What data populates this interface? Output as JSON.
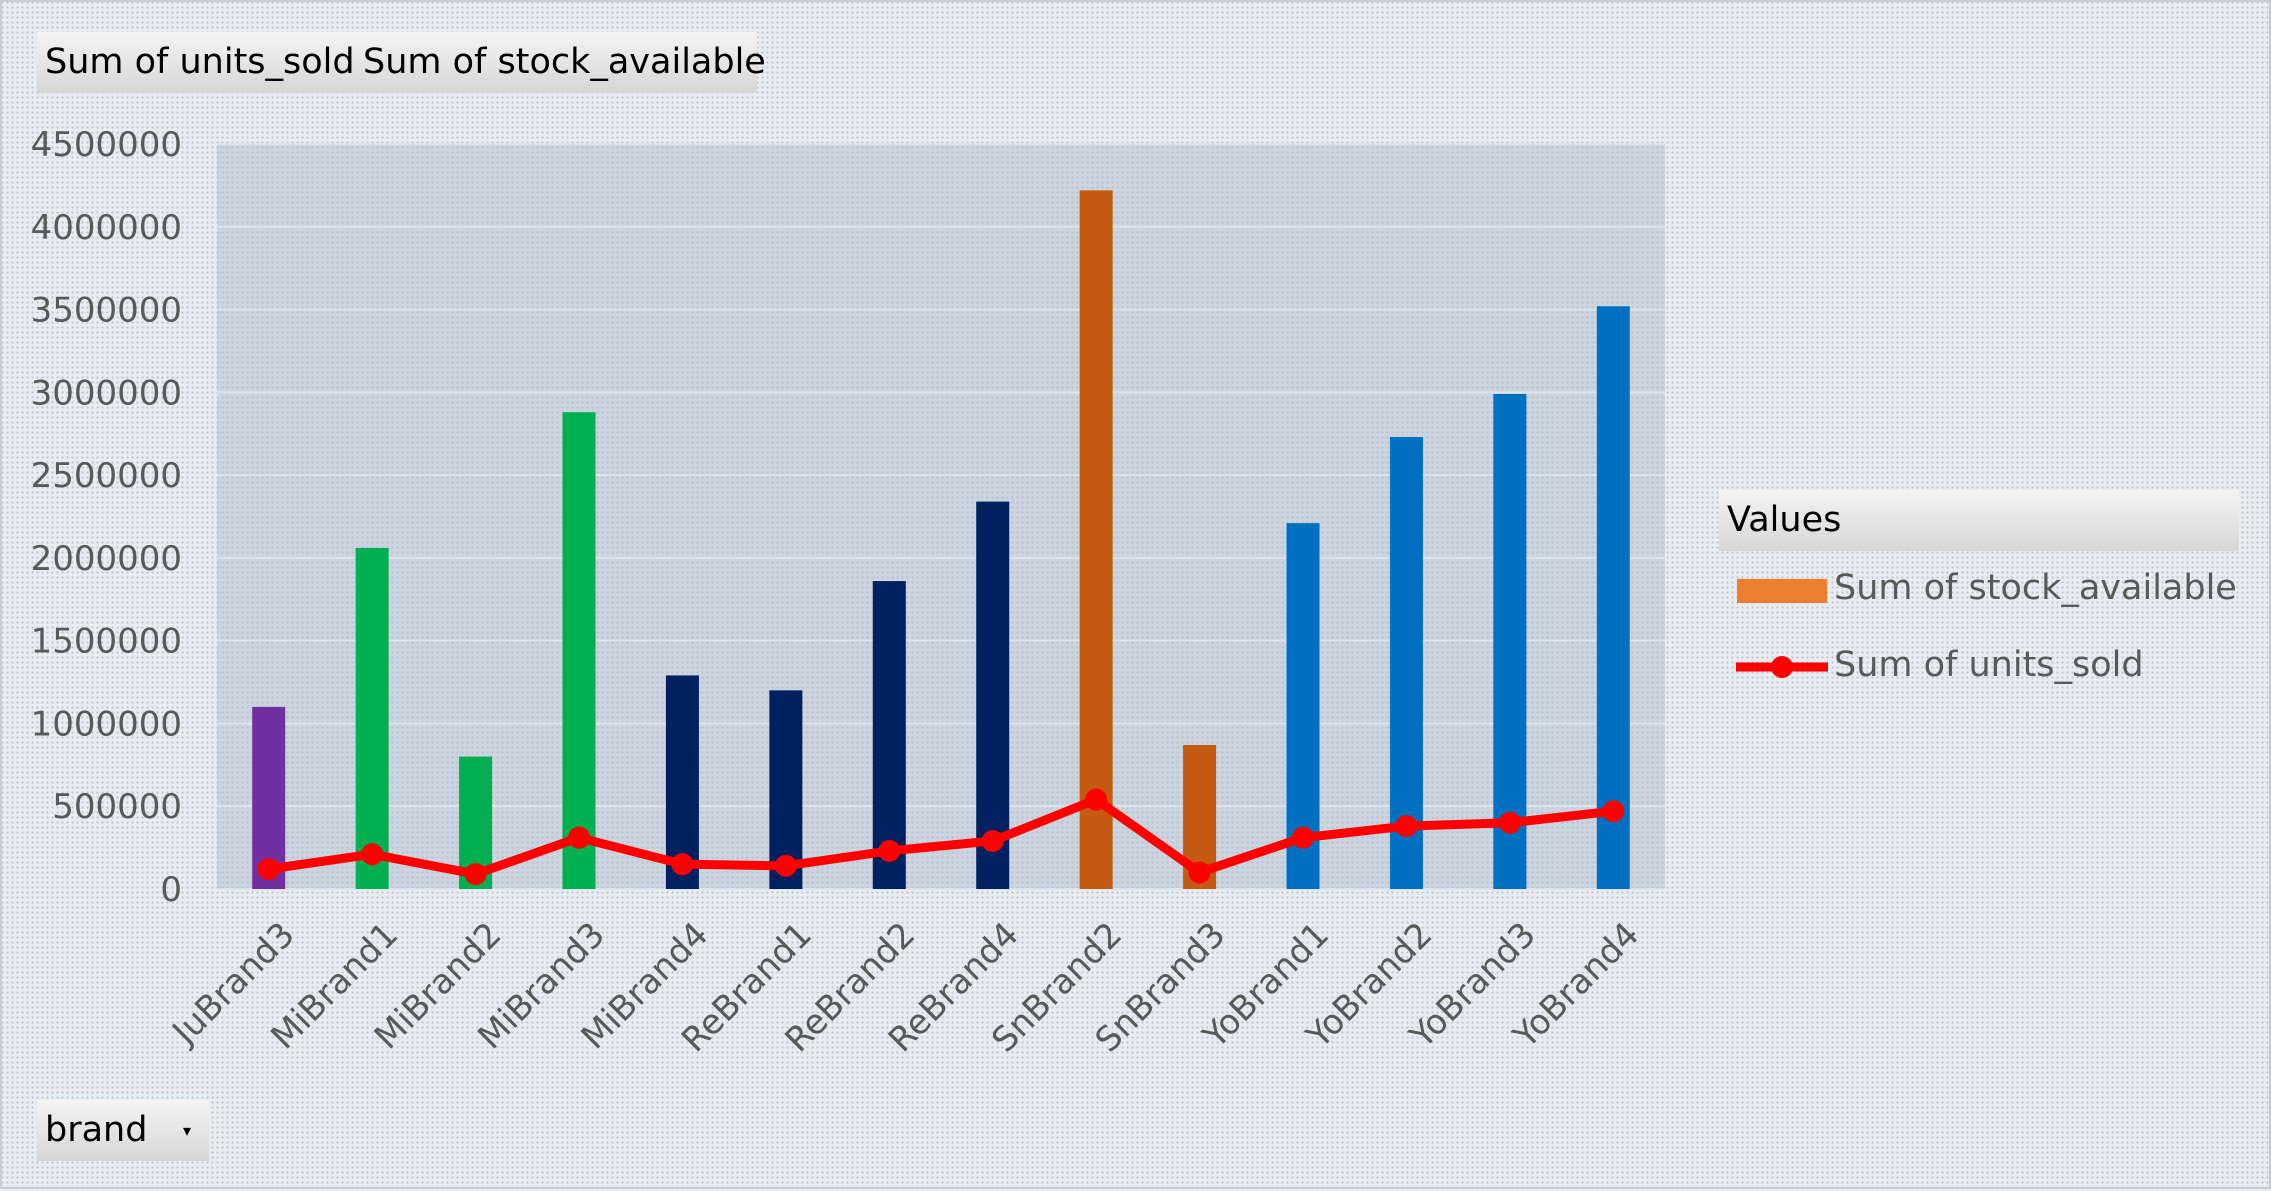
{
  "pivot": {
    "value_buttons": [
      "Sum of units_sold",
      "Sum of stock_available"
    ],
    "row_field": "brand",
    "legend_title": "Values"
  },
  "chart_data": {
    "type": "bar",
    "categories": [
      "JuBrand3",
      "MiBrand1",
      "MiBrand2",
      "MiBrand3",
      "MiBrand4",
      "ReBrand1",
      "ReBrand2",
      "ReBrand4",
      "SnBrand2",
      "SnBrand3",
      "YoBrand1",
      "YoBrand2",
      "YoBrand3",
      "YoBrand4"
    ],
    "series": [
      {
        "name": "Sum of stock_available",
        "kind": "bar",
        "legend_color": "#ed7d31",
        "values": [
          1100000,
          2060000,
          800000,
          2880000,
          1290000,
          1200000,
          1860000,
          2340000,
          4220000,
          870000,
          2210000,
          2730000,
          2990000,
          3520000
        ],
        "colors": [
          "#7030a0",
          "#00b050",
          "#00b050",
          "#00b050",
          "#002060",
          "#002060",
          "#002060",
          "#002060",
          "#c55a11",
          "#c55a11",
          "#0070c0",
          "#0070c0",
          "#0070c0",
          "#0070c0"
        ]
      },
      {
        "name": "Sum of units_sold",
        "kind": "line",
        "color": "#ff0000",
        "values": [
          120000,
          210000,
          90000,
          310000,
          150000,
          140000,
          230000,
          290000,
          540000,
          100000,
          310000,
          380000,
          400000,
          470000
        ]
      }
    ],
    "yticks": [
      "0",
      "500000",
      "1000000",
      "1500000",
      "2000000",
      "2500000",
      "3000000",
      "3500000",
      "4000000",
      "4500000"
    ],
    "ylim": [
      0,
      4500000
    ],
    "grid": true,
    "legend_position": "right"
  }
}
